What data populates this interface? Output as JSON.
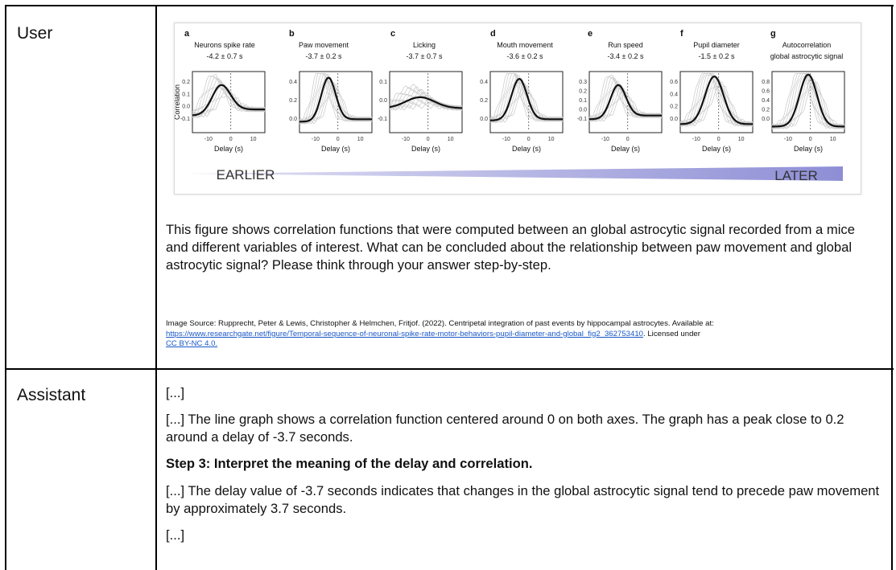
{
  "user": {
    "role_label": "User",
    "figure": {
      "panels": [
        {
          "letter": "a",
          "title": "Neurons spike rate",
          "subtitle": "-4.2 ± 0.7 s",
          "yticks": [
            "0.2",
            "0.1",
            "0.0",
            "-0.1"
          ],
          "xticks": [
            "-10",
            "0",
            "10"
          ],
          "xlabel": "Delay (s)",
          "ylabel": "Correlation"
        },
        {
          "letter": "b",
          "title": "Paw movement",
          "subtitle": "-3.7 ± 0.2 s",
          "yticks": [
            "0.4",
            "0.2",
            "0.0"
          ],
          "xticks": [
            "-10",
            "0",
            "10"
          ],
          "xlabel": "Delay (s)",
          "ylabel": ""
        },
        {
          "letter": "c",
          "title": "Licking",
          "subtitle": "-3.7 ± 0.7 s",
          "yticks": [
            "0.1",
            "0.0",
            "-0.1"
          ],
          "xticks": [
            "-10",
            "0",
            "10"
          ],
          "xlabel": "Delay (s)",
          "ylabel": ""
        },
        {
          "letter": "d",
          "title": "Mouth movement",
          "subtitle": "-3.6 ± 0.2 s",
          "yticks": [
            "0.4",
            "0.2",
            "0.0"
          ],
          "xticks": [
            "-10",
            "0",
            "10"
          ],
          "xlabel": "Delay (s)",
          "ylabel": ""
        },
        {
          "letter": "e",
          "title": "Run speed",
          "subtitle": "-3.4 ± 0.2 s",
          "yticks": [
            "0.3",
            "0.2",
            "0.1",
            "0.0",
            "-0.1"
          ],
          "xticks": [
            "-10",
            "0"
          ],
          "xlabel": "Delay (s)",
          "ylabel": ""
        },
        {
          "letter": "f",
          "title": "Pupil diameter",
          "subtitle": "-1.5 ± 0.2 s",
          "yticks": [
            "0.6",
            "0.4",
            "0.2",
            "0.0"
          ],
          "xticks": [
            "-10",
            "0",
            "10"
          ],
          "xlabel": "Delay (s)",
          "ylabel": ""
        },
        {
          "letter": "g",
          "title": "Autocorrelation",
          "subtitle": "global astrocytic signal",
          "yticks": [
            "0.8",
            "0.6",
            "0.4",
            "0.2",
            "0.0"
          ],
          "xticks": [
            "-10",
            "0",
            "10"
          ],
          "xlabel": "Delay (s)",
          "ylabel": ""
        }
      ],
      "arrow_left_label": "EARLIER",
      "arrow_right_label": "LATER",
      "arrow_color": "#8e8ed6"
    },
    "question": "This figure shows correlation functions that were computed between an global astrocytic signal recorded from a mice and different variables of interest. What can be concluded about the relationship between paw movement and global astrocytic signal? Please think through your answer step-by-step.",
    "source_prefix": "Image Source: Rupprecht, Peter & Lewis, Christopher & Helmchen, Fritjof. (2022). Centripetal integration of past events by hippocampal astrocytes. Available at:",
    "source_link": "https://www.researchgate.net/figure/Temporal-sequence-of-neuronal-spike-rate-motor-behaviors-pupil-diameter-and-global_fig2_362753410",
    "source_suffix": ". Licensed under",
    "license_link": "CC BY-NC 4.0."
  },
  "assistant": {
    "role_label": "Assistant",
    "ellipsis_top": "[...]",
    "para1": "[...] The line graph shows a correlation function centered around 0 on both axes. The graph has a peak close to 0.2 around a delay of -3.7 seconds.",
    "step3_heading": "Step 3: Interpret the meaning of the delay and correlation.",
    "para2": "[...] The delay value of -3.7 seconds indicates that changes in the global astrocytic signal tend to precede paw movement by approximately 3.7 seconds.",
    "ellipsis_bottom": "[...]"
  }
}
